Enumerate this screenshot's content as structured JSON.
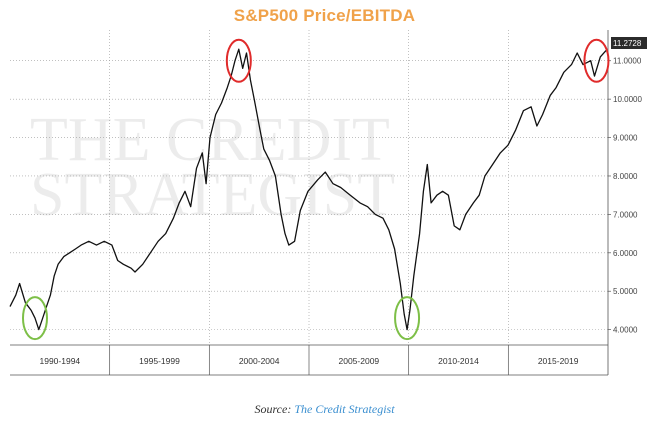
{
  "chart_data": {
    "type": "line",
    "title": "S&P500 Price/EBITDA",
    "xlabel": "",
    "ylabel": "",
    "x_labels": [
      "1990-1994",
      "1995-1999",
      "2000-2004",
      "2005-2009",
      "2010-2014",
      "2015-2019"
    ],
    "y_ticks": [
      "4.0000",
      "5.0000",
      "6.0000",
      "7.0000",
      "8.0000",
      "9.0000",
      "10.0000",
      "11.0000"
    ],
    "ylim": [
      3.6,
      11.8
    ],
    "xlim": [
      1988.5,
      2019.6
    ],
    "last_value_label": "11.2728",
    "series": [
      {
        "color": "#111111",
        "points": [
          [
            1988.5,
            4.6
          ],
          [
            1988.8,
            4.9
          ],
          [
            1989.0,
            5.2
          ],
          [
            1989.3,
            4.7
          ],
          [
            1989.6,
            4.5
          ],
          [
            1989.8,
            4.3
          ],
          [
            1990.0,
            4.0
          ],
          [
            1990.2,
            4.3
          ],
          [
            1990.4,
            4.6
          ],
          [
            1990.6,
            4.9
          ],
          [
            1990.8,
            5.4
          ],
          [
            1991.0,
            5.7
          ],
          [
            1991.3,
            5.9
          ],
          [
            1991.6,
            6.0
          ],
          [
            1991.9,
            6.1
          ],
          [
            1992.2,
            6.2
          ],
          [
            1992.6,
            6.3
          ],
          [
            1993.0,
            6.2
          ],
          [
            1993.4,
            6.3
          ],
          [
            1993.8,
            6.2
          ],
          [
            1994.1,
            5.8
          ],
          [
            1994.4,
            5.7
          ],
          [
            1994.8,
            5.6
          ],
          [
            1995.0,
            5.5
          ],
          [
            1995.4,
            5.7
          ],
          [
            1995.8,
            6.0
          ],
          [
            1996.2,
            6.3
          ],
          [
            1996.6,
            6.5
          ],
          [
            1997.0,
            6.9
          ],
          [
            1997.3,
            7.3
          ],
          [
            1997.6,
            7.6
          ],
          [
            1997.9,
            7.2
          ],
          [
            1998.2,
            8.2
          ],
          [
            1998.5,
            8.6
          ],
          [
            1998.7,
            7.8
          ],
          [
            1998.9,
            9.0
          ],
          [
            1999.2,
            9.6
          ],
          [
            1999.5,
            9.9
          ],
          [
            1999.8,
            10.3
          ],
          [
            2000.0,
            10.6
          ],
          [
            2000.2,
            11.0
          ],
          [
            2000.4,
            11.3
          ],
          [
            2000.6,
            10.8
          ],
          [
            2000.8,
            11.2
          ],
          [
            2001.0,
            10.5
          ],
          [
            2001.2,
            10.0
          ],
          [
            2001.5,
            9.2
          ],
          [
            2001.7,
            8.7
          ],
          [
            2002.0,
            8.4
          ],
          [
            2002.3,
            8.0
          ],
          [
            2002.6,
            7.0
          ],
          [
            2002.8,
            6.5
          ],
          [
            2003.0,
            6.2
          ],
          [
            2003.3,
            6.3
          ],
          [
            2003.6,
            7.1
          ],
          [
            2004.0,
            7.6
          ],
          [
            2004.5,
            7.9
          ],
          [
            2004.9,
            8.1
          ],
          [
            2005.3,
            7.8
          ],
          [
            2005.7,
            7.7
          ],
          [
            2006.2,
            7.5
          ],
          [
            2006.7,
            7.3
          ],
          [
            2007.1,
            7.2
          ],
          [
            2007.5,
            7.0
          ],
          [
            2007.9,
            6.9
          ],
          [
            2008.2,
            6.6
          ],
          [
            2008.5,
            6.1
          ],
          [
            2008.8,
            5.2
          ],
          [
            2009.0,
            4.4
          ],
          [
            2009.15,
            4.0
          ],
          [
            2009.3,
            4.5
          ],
          [
            2009.5,
            5.4
          ],
          [
            2009.8,
            6.5
          ],
          [
            2010.0,
            7.6
          ],
          [
            2010.2,
            8.3
          ],
          [
            2010.4,
            7.3
          ],
          [
            2010.7,
            7.5
          ],
          [
            2011.0,
            7.6
          ],
          [
            2011.3,
            7.5
          ],
          [
            2011.6,
            6.7
          ],
          [
            2011.9,
            6.6
          ],
          [
            2012.2,
            7.0
          ],
          [
            2012.6,
            7.3
          ],
          [
            2012.9,
            7.5
          ],
          [
            2013.2,
            8.0
          ],
          [
            2013.6,
            8.3
          ],
          [
            2014.0,
            8.6
          ],
          [
            2014.4,
            8.8
          ],
          [
            2014.8,
            9.2
          ],
          [
            2015.2,
            9.7
          ],
          [
            2015.6,
            9.8
          ],
          [
            2015.9,
            9.3
          ],
          [
            2016.2,
            9.6
          ],
          [
            2016.6,
            10.1
          ],
          [
            2016.9,
            10.3
          ],
          [
            2017.3,
            10.7
          ],
          [
            2017.7,
            10.9
          ],
          [
            2018.0,
            11.2
          ],
          [
            2018.3,
            10.9
          ],
          [
            2018.7,
            11.0
          ],
          [
            2018.9,
            10.6
          ],
          [
            2019.2,
            11.1
          ],
          [
            2019.5,
            11.27
          ]
        ]
      }
    ],
    "highlights": [
      {
        "x": 1989.8,
        "y": 4.3,
        "color": "#7dbf47"
      },
      {
        "x": 2000.4,
        "y": 11.0,
        "color": "#e02b2b"
      },
      {
        "x": 2009.15,
        "y": 4.3,
        "color": "#7dbf47"
      },
      {
        "x": 2019.0,
        "y": 11.0,
        "color": "#e02b2b"
      }
    ],
    "grid": true
  },
  "watermark": {
    "line1": "THE CREDIT",
    "line2": "STRATEGIST"
  },
  "source": {
    "prefix": "Source:",
    "name": "The Credit Strategist"
  }
}
